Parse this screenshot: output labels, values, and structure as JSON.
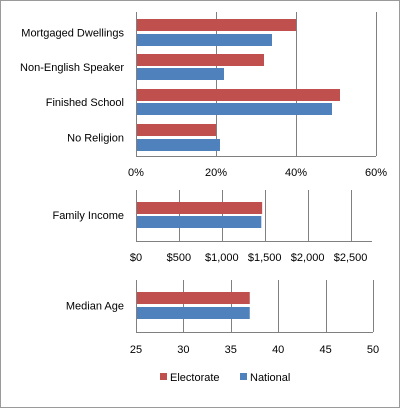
{
  "chart_data": [
    {
      "type": "bar",
      "orientation": "horizontal",
      "categories": [
        "Mortgaged Dwellings",
        "Non-English Speaker",
        "Finished School",
        "No Religion"
      ],
      "series": [
        {
          "name": "Electorate",
          "color": "#C0504D",
          "values": [
            0.4,
            0.32,
            0.51,
            0.2
          ]
        },
        {
          "name": "National",
          "color": "#4F81BD",
          "values": [
            0.34,
            0.22,
            0.49,
            0.21
          ]
        }
      ],
      "xlim": [
        0,
        0.6
      ],
      "ticks": [
        0,
        0.2,
        0.4,
        0.6
      ],
      "tick_labels": [
        "0%",
        "20%",
        "40%",
        "60%"
      ],
      "grid": true
    },
    {
      "type": "bar",
      "orientation": "horizontal",
      "categories": [
        "Family Income"
      ],
      "series": [
        {
          "name": "Electorate",
          "color": "#C0504D",
          "values": [
            1470
          ]
        },
        {
          "name": "National",
          "color": "#4F81BD",
          "values": [
            1460
          ]
        }
      ],
      "xlim": [
        0,
        2750
      ],
      "ticks": [
        0,
        500,
        1000,
        1500,
        2000,
        2500
      ],
      "tick_labels": [
        "$0",
        "$500",
        "$1,000",
        "$1,500",
        "$2,000",
        "$2,500"
      ],
      "grid": true
    },
    {
      "type": "bar",
      "orientation": "horizontal",
      "categories": [
        "Median Age"
      ],
      "series": [
        {
          "name": "Electorate",
          "color": "#C0504D",
          "values": [
            37
          ]
        },
        {
          "name": "National",
          "color": "#4F81BD",
          "values": [
            37
          ]
        }
      ],
      "xlim": [
        25,
        50
      ],
      "ticks": [
        25,
        30,
        35,
        40,
        45,
        50
      ],
      "tick_labels": [
        "25",
        "30",
        "35",
        "40",
        "45",
        "50"
      ],
      "grid": true
    }
  ],
  "legend": {
    "placement": "bottom",
    "items": [
      {
        "label": "Electorate",
        "color": "#C0504D"
      },
      {
        "label": "National",
        "color": "#4F81BD"
      }
    ]
  }
}
